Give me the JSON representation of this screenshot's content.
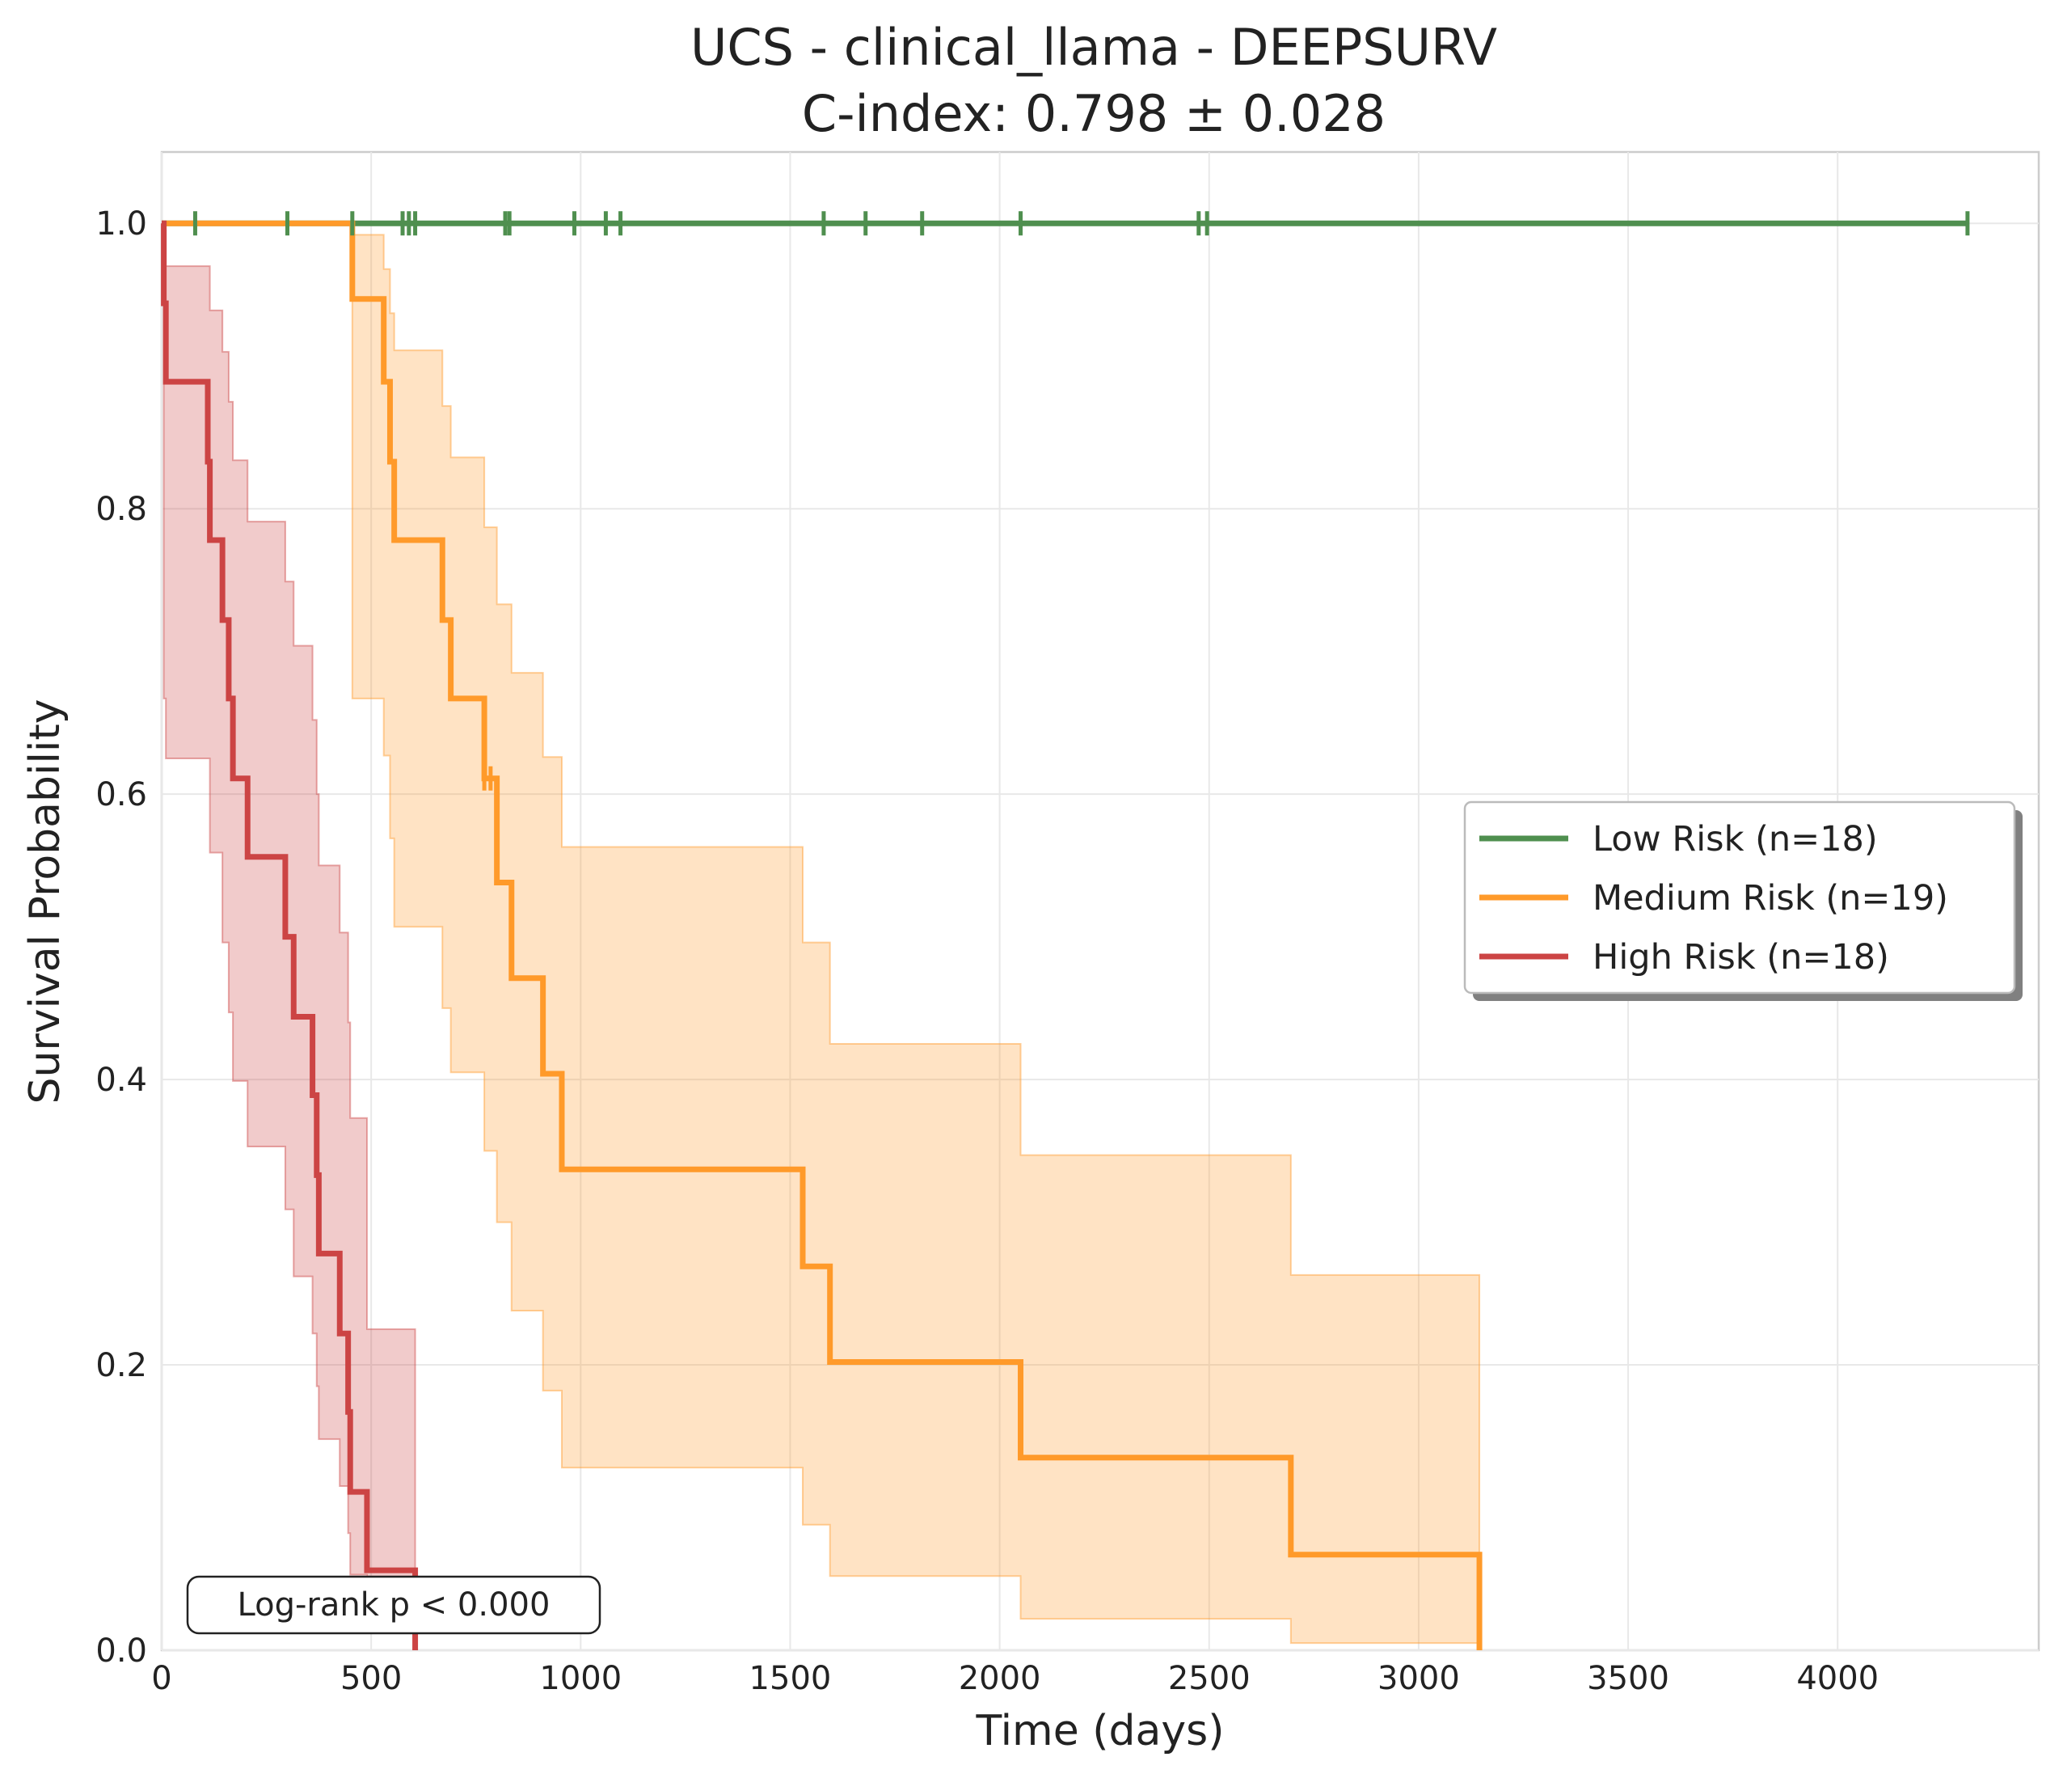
{
  "chart_data": {
    "type": "line",
    "title": "UCS - clinical_llama - DEEPSURV",
    "subtitle": "C-index: 0.798 ± 0.028",
    "xlabel": "Time (days)",
    "ylabel": "Survival Probability",
    "xlim": [
      0,
      4480
    ],
    "ylim": [
      0,
      1.05
    ],
    "xticks": [
      0,
      500,
      1000,
      1500,
      2000,
      2500,
      3000,
      3500,
      4000
    ],
    "xtick_labels": [
      "0",
      "500",
      "1000",
      "1500",
      "2000",
      "2500",
      "3000",
      "3500",
      "4000"
    ],
    "yticks": [
      0.0,
      0.2,
      0.4,
      0.6,
      0.8,
      1.0
    ],
    "ytick_labels": [
      "0.0",
      "0.2",
      "0.4",
      "0.6",
      "0.8",
      "1.0"
    ],
    "grid": true,
    "legend_position": "center-right",
    "annotation": "Log-rank p < 0.000",
    "series": [
      {
        "name": "Low Risk (n=18)",
        "color": "#4f8f4f",
        "steps": [
          [
            0,
            1.0
          ],
          [
            4310,
            1.0
          ]
        ],
        "censor_times": [
          80,
          300,
          455,
          575,
          590,
          605,
          820,
          830,
          985,
          1060,
          1095,
          1580,
          1680,
          1815,
          2050,
          2475,
          2495,
          4310
        ]
      },
      {
        "name": "Medium Risk (n=19)",
        "color": "#ff9a2a",
        "steps": [
          [
            0,
            1.0
          ],
          [
            455,
            0.947
          ],
          [
            530,
            0.889
          ],
          [
            545,
            0.833
          ],
          [
            555,
            0.778
          ],
          [
            670,
            0.722
          ],
          [
            690,
            0.667
          ],
          [
            770,
            0.611
          ],
          [
            785,
            0.611
          ],
          [
            800,
            0.538
          ],
          [
            835,
            0.471
          ],
          [
            910,
            0.404
          ],
          [
            955,
            0.337
          ],
          [
            1530,
            0.269
          ],
          [
            1595,
            0.202
          ],
          [
            2050,
            0.135
          ],
          [
            2695,
            0.067
          ],
          [
            3145,
            0.0
          ]
        ],
        "ci_lower": [
          1.0,
          0.667,
          0.627,
          0.569,
          0.507,
          0.45,
          0.405,
          0.35,
          0.35,
          0.3,
          0.238,
          0.182,
          0.128,
          0.088,
          0.052,
          0.022,
          0.005,
          0.0
        ],
        "ci_upper": [
          1.0,
          0.992,
          0.968,
          0.937,
          0.911,
          0.872,
          0.836,
          0.787,
          0.787,
          0.733,
          0.685,
          0.626,
          0.563,
          0.496,
          0.425,
          0.347,
          0.263,
          0.263
        ],
        "censor_times": [
          770,
          785
        ]
      },
      {
        "name": "High Risk (n=18)",
        "color": "#cc4444",
        "steps": [
          [
            0,
            1.0
          ],
          [
            5,
            0.944
          ],
          [
            10,
            0.889
          ],
          [
            110,
            0.833
          ],
          [
            115,
            0.778
          ],
          [
            145,
            0.722
          ],
          [
            160,
            0.667
          ],
          [
            170,
            0.611
          ],
          [
            205,
            0.556
          ],
          [
            295,
            0.5
          ],
          [
            315,
            0.444
          ],
          [
            360,
            0.389
          ],
          [
            370,
            0.333
          ],
          [
            375,
            0.278
          ],
          [
            425,
            0.222
          ],
          [
            445,
            0.167
          ],
          [
            450,
            0.111
          ],
          [
            490,
            0.056
          ],
          [
            605,
            0.0
          ]
        ],
        "ci_lower": [
          1.0,
          0.667,
          0.625,
          0.625,
          0.559,
          0.496,
          0.447,
          0.399,
          0.353,
          0.309,
          0.262,
          0.222,
          0.185,
          0.148,
          0.115,
          0.082,
          0.053,
          0.028,
          0.0
        ],
        "ci_upper": [
          1.0,
          0.995,
          0.97,
          0.97,
          0.939,
          0.91,
          0.875,
          0.834,
          0.791,
          0.749,
          0.704,
          0.652,
          0.6,
          0.55,
          0.503,
          0.44,
          0.373,
          0.225,
          0.225
        ]
      }
    ]
  }
}
